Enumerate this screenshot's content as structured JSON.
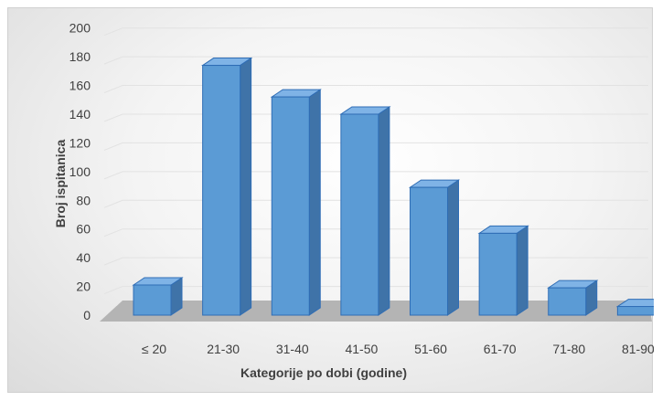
{
  "chart_data": {
    "type": "bar",
    "title": "",
    "xlabel": "Kategorije po dobi (godine)",
    "ylabel": "Broj ispitanica",
    "categories": [
      "≤ 20",
      "21-30",
      "31-40",
      "41-50",
      "51-60",
      "61-70",
      "71-80",
      "81-90"
    ],
    "values": [
      21,
      174,
      152,
      140,
      89,
      57,
      19,
      6
    ],
    "ylim": [
      0,
      200
    ],
    "yticks": [
      0,
      20,
      40,
      60,
      80,
      100,
      120,
      140,
      160,
      180,
      200
    ],
    "grid": true,
    "legend": "none",
    "style": "3d-column",
    "colors": {
      "bar_front": "#5b9bd5",
      "bar_top": "#7fb3e6",
      "bar_side": "#3f73a8",
      "bar_edge": "#2f6db5",
      "floor": "#b4b4b4",
      "grid": "#e2e2e2"
    }
  }
}
